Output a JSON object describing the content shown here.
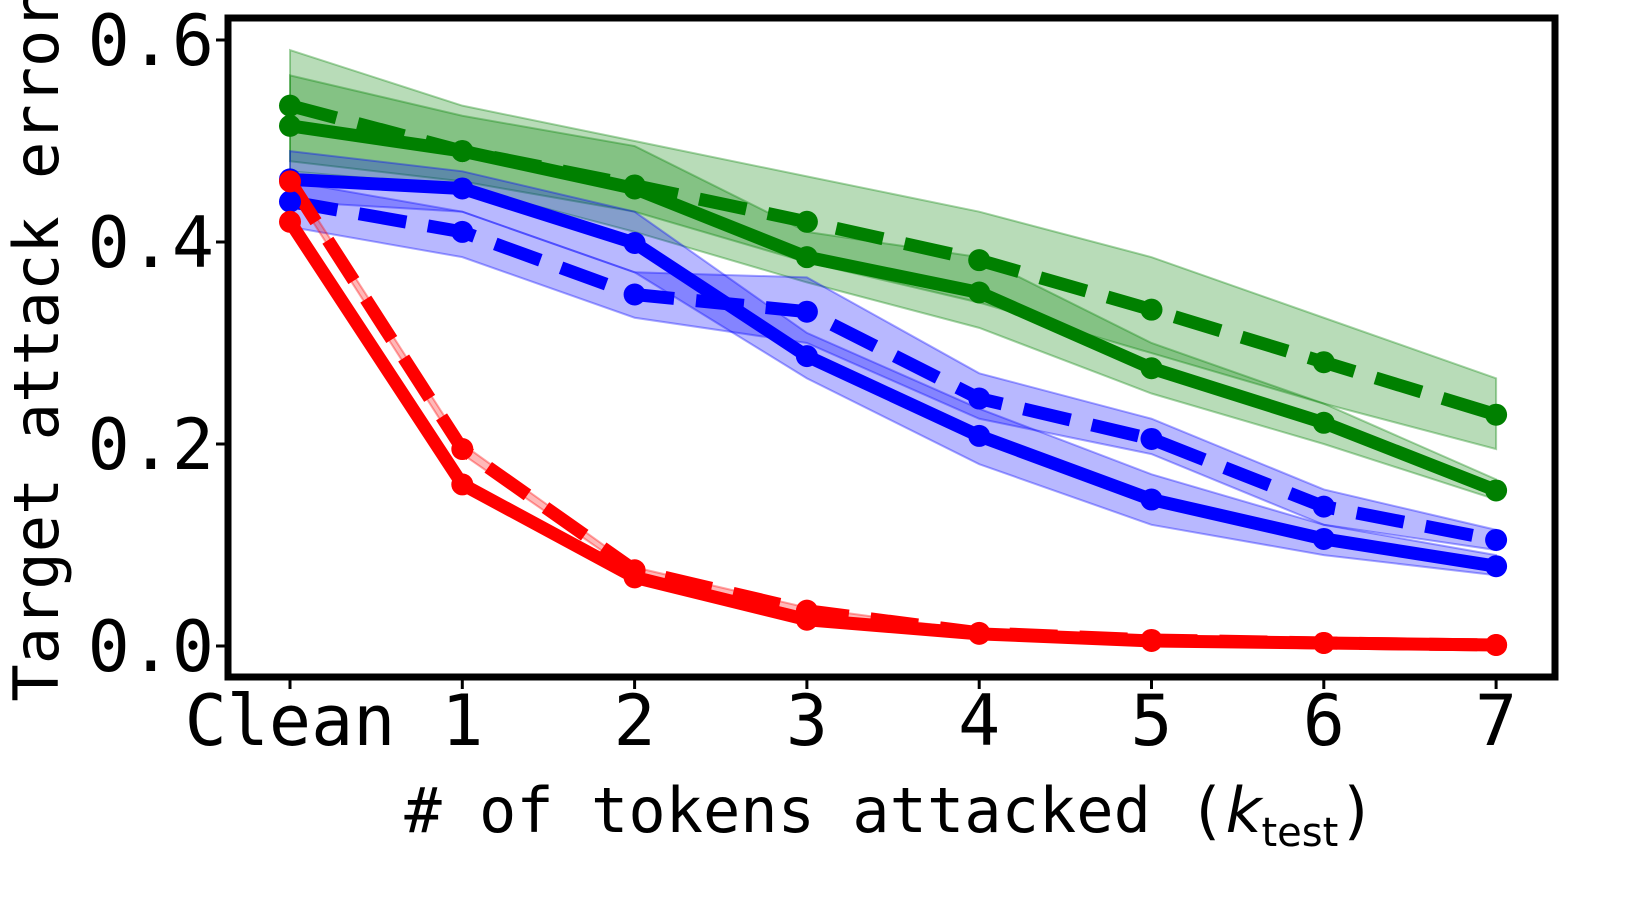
{
  "chart_data": {
    "type": "line",
    "categories": [
      "Clean",
      "1",
      "2",
      "3",
      "4",
      "5",
      "6",
      "7"
    ],
    "xlabel": {
      "prefix": "# of tokens attacked (",
      "var": "k",
      "sub": "test",
      "suffix": ")"
    },
    "ylabel": "Target attack error",
    "ylim": [
      0.0,
      0.62
    ],
    "yticks": [
      "0.0",
      "0.2",
      "0.4",
      "0.6"
    ],
    "ytick_values": [
      0.0,
      0.2,
      0.4,
      0.6
    ],
    "grid": false,
    "legend": "none",
    "series": [
      {
        "color": "#008000",
        "dash": "dashed",
        "values": [
          0.535,
          0.49,
          0.456,
          0.42,
          0.382,
          0.333,
          0.281,
          0.229
        ],
        "lower": [
          0.48,
          0.46,
          0.43,
          0.38,
          0.34,
          0.29,
          0.24,
          0.195
        ],
        "upper": [
          0.59,
          0.535,
          0.5,
          0.465,
          0.43,
          0.385,
          0.325,
          0.265
        ]
      },
      {
        "color": "#008000",
        "dash": "solid",
        "values": [
          0.515,
          0.49,
          0.453,
          0.385,
          0.35,
          0.275,
          0.221,
          0.154
        ],
        "lower": [
          0.47,
          0.455,
          0.41,
          0.36,
          0.315,
          0.25,
          0.2,
          0.145
        ],
        "upper": [
          0.565,
          0.525,
          0.495,
          0.41,
          0.385,
          0.3,
          0.24,
          0.165
        ]
      },
      {
        "color": "#0000ff",
        "dash": "solid",
        "values": [
          0.462,
          0.453,
          0.399,
          0.287,
          0.208,
          0.145,
          0.106,
          0.079
        ],
        "lower": [
          0.44,
          0.43,
          0.37,
          0.265,
          0.18,
          0.12,
          0.09,
          0.07
        ],
        "upper": [
          0.49,
          0.47,
          0.43,
          0.31,
          0.235,
          0.17,
          0.12,
          0.09
        ]
      },
      {
        "color": "#0000ff",
        "dash": "dashed",
        "values": [
          0.44,
          0.41,
          0.348,
          0.331,
          0.245,
          0.205,
          0.138,
          0.105
        ],
        "lower": [
          0.415,
          0.385,
          0.325,
          0.3,
          0.225,
          0.19,
          0.12,
          0.095
        ],
        "upper": [
          0.46,
          0.43,
          0.37,
          0.365,
          0.27,
          0.225,
          0.155,
          0.115
        ]
      },
      {
        "color": "#ff0000",
        "dash": "dashed",
        "values": [
          0.46,
          0.195,
          0.075,
          0.035,
          0.013,
          0.006,
          0.003,
          0.001
        ],
        "lower": [
          0.455,
          0.19,
          0.072,
          0.032,
          0.011,
          0.005,
          0.002,
          0.0005
        ],
        "upper": [
          0.465,
          0.2,
          0.078,
          0.038,
          0.015,
          0.007,
          0.004,
          0.0015
        ]
      },
      {
        "color": "#ff0000",
        "dash": "solid",
        "values": [
          0.42,
          0.16,
          0.068,
          0.026,
          0.012,
          0.005,
          0.003,
          0.001
        ],
        "lower": [
          0.415,
          0.155,
          0.065,
          0.023,
          0.01,
          0.004,
          0.002,
          0.0005
        ],
        "upper": [
          0.425,
          0.165,
          0.071,
          0.029,
          0.014,
          0.006,
          0.004,
          0.0015
        ]
      }
    ]
  }
}
